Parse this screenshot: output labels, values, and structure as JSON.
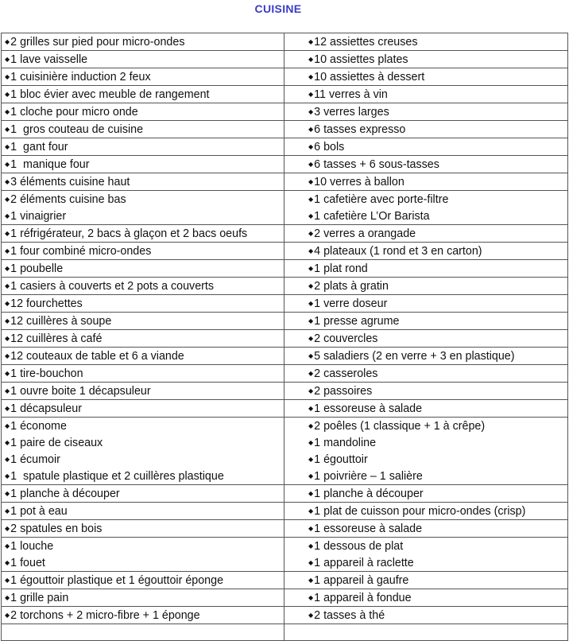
{
  "title": "CUISINE",
  "bullet_icon": "diamond-bullet",
  "accent_color": "#3a3ac8",
  "rows": [
    {
      "left": [
        "2 grilles sur pied pour micro-ondes"
      ],
      "right": [
        "12 assiettes creuses"
      ]
    },
    {
      "left": [
        "1 lave vaisselle"
      ],
      "right": [
        "10 assiettes plates"
      ]
    },
    {
      "left": [
        "1 cuisinière induction 2 feux"
      ],
      "right": [
        "10 assiettes à dessert"
      ]
    },
    {
      "left": [
        "1 bloc évier avec meuble de rangement"
      ],
      "right": [
        "11 verres à vin"
      ]
    },
    {
      "left": [
        "1 cloche pour micro onde"
      ],
      "right": [
        "3 verres larges"
      ]
    },
    {
      "left": [
        "1  gros couteau de cuisine"
      ],
      "right": [
        "6 tasses expresso"
      ]
    },
    {
      "left": [
        "1  gant four"
      ],
      "right": [
        "6 bols"
      ]
    },
    {
      "left": [
        "1  manique four"
      ],
      "right": [
        "6 tasses + 6 sous-tasses"
      ]
    },
    {
      "left": [
        "3 éléments cuisine haut"
      ],
      "right": [
        "10 verres à ballon"
      ]
    },
    {
      "left": [
        "2 éléments cuisine bas",
        "1 vinaigrier"
      ],
      "right": [
        "1 cafetière avec porte-filtre",
        "1 cafetière L’Or Barista"
      ]
    },
    {
      "left": [
        "1 réfrigérateur, 2 bacs à glaçon et 2 bacs oeufs"
      ],
      "right": [
        "2 verres a orangade"
      ]
    },
    {
      "left": [
        "1 four combiné micro-ondes"
      ],
      "right": [
        "4 plateaux (1 rond et 3 en carton)"
      ]
    },
    {
      "left": [
        "1 poubelle"
      ],
      "right": [
        "1 plat rond"
      ]
    },
    {
      "left": [
        "1 casiers à couverts et 2 pots a couverts"
      ],
      "right": [
        "2 plats à gratin"
      ]
    },
    {
      "left": [
        "12 fourchettes"
      ],
      "right": [
        "1 verre doseur"
      ]
    },
    {
      "left": [
        "12 cuillères à soupe"
      ],
      "right": [
        "1 presse agrume"
      ]
    },
    {
      "left": [
        "12 cuillères à café"
      ],
      "right": [
        "2 couvercles"
      ]
    },
    {
      "left": [
        "12 couteaux de table et 6 a viande"
      ],
      "right": [
        "5 saladiers (2 en verre + 3 en plastique)"
      ]
    },
    {
      "left": [
        "1 tire-bouchon"
      ],
      "right": [
        "2 casseroles"
      ]
    },
    {
      "left": [
        "1 ouvre boite 1 décapsuleur"
      ],
      "right": [
        "2 passoires"
      ]
    },
    {
      "left": [
        "1 décapsuleur"
      ],
      "right": [
        "1 essoreuse à salade"
      ]
    },
    {
      "left": [
        "1 économe",
        "1 paire de ciseaux",
        "1 écumoir",
        "1  spatule plastique et 2 cuillères plastique"
      ],
      "right": [
        "2 poêles (1 classique + 1 à crêpe)",
        "1 mandoline",
        "1 égouttoir",
        "1 poivrière – 1 salière"
      ]
    },
    {
      "left": [
        "1 planche à découper"
      ],
      "right": [
        "1 planche à découper"
      ]
    },
    {
      "left": [
        "1 pot à eau"
      ],
      "right": [
        "1 plat de cuisson pour micro-ondes (crisp)"
      ]
    },
    {
      "left": [
        "2 spatules en bois"
      ],
      "right": [
        "1 essoreuse à salade"
      ]
    },
    {
      "left": [
        "1 louche",
        "1 fouet"
      ],
      "right": [
        "1 dessous de plat",
        "1 appareil à raclette"
      ]
    },
    {
      "left": [
        "1 égouttoir plastique et 1 égouttoir éponge"
      ],
      "right": [
        "1 appareil à gaufre"
      ]
    },
    {
      "left": [
        "1 grille pain"
      ],
      "right": [
        "1 appareil à fondue"
      ]
    },
    {
      "left": [
        "2 torchons + 2 micro-fibre + 1 éponge"
      ],
      "right": [
        "2 tasses à thé"
      ]
    },
    {
      "left": [],
      "right": []
    }
  ]
}
